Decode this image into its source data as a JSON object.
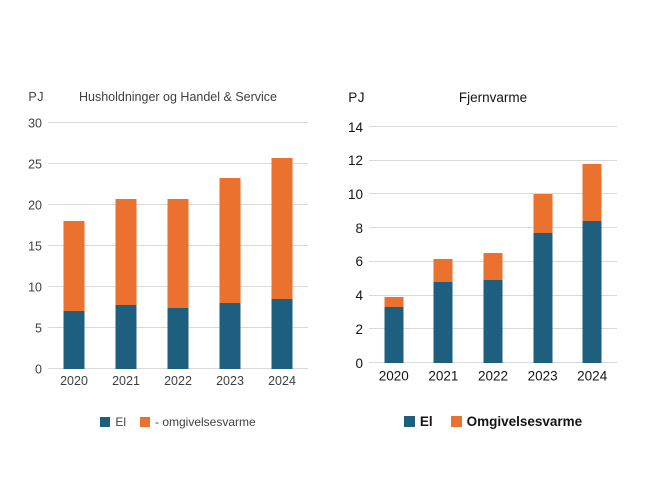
{
  "page_background": "#ffffff",
  "colors": {
    "el": "#1E5F80",
    "omgivelsesvarme": "#EB712F",
    "gridline": "#D9D9D9"
  },
  "chart_data": [
    {
      "type": "bar",
      "stacked": true,
      "title": "Husholdninger og Handel & Service",
      "unit_label": "PJ",
      "categories": [
        "2020",
        "2021",
        "2022",
        "2023",
        "2024"
      ],
      "series": [
        {
          "name": "El",
          "color": "#1E5F80",
          "values": [
            7.1,
            7.8,
            7.5,
            8.1,
            8.5
          ]
        },
        {
          "name": "- omgivelsesvarme",
          "color": "#EB712F",
          "values": [
            11.0,
            12.9,
            13.2,
            15.2,
            17.2
          ]
        }
      ],
      "totals": [
        18.1,
        20.7,
        20.7,
        23.3,
        25.7
      ],
      "ylim": [
        0,
        30
      ],
      "ytick_step": 5,
      "grid": "horizontal",
      "legend_position": "bottom"
    },
    {
      "type": "bar",
      "stacked": true,
      "title": "Fjernvarme",
      "unit_label": "PJ",
      "categories": [
        "2020",
        "2021",
        "2022",
        "2023",
        "2024"
      ],
      "series": [
        {
          "name": "El",
          "color": "#1E5F80",
          "values": [
            3.3,
            4.8,
            4.9,
            7.7,
            8.4
          ]
        },
        {
          "name": "Omgivelsesvarme",
          "color": "#EB712F",
          "values": [
            0.6,
            1.4,
            1.6,
            2.3,
            3.4
          ]
        }
      ],
      "totals": [
        3.9,
        6.2,
        6.5,
        10.0,
        11.8
      ],
      "ylim": [
        0,
        14
      ],
      "ytick_step": 2,
      "grid": "horizontal",
      "legend_position": "bottom"
    }
  ]
}
